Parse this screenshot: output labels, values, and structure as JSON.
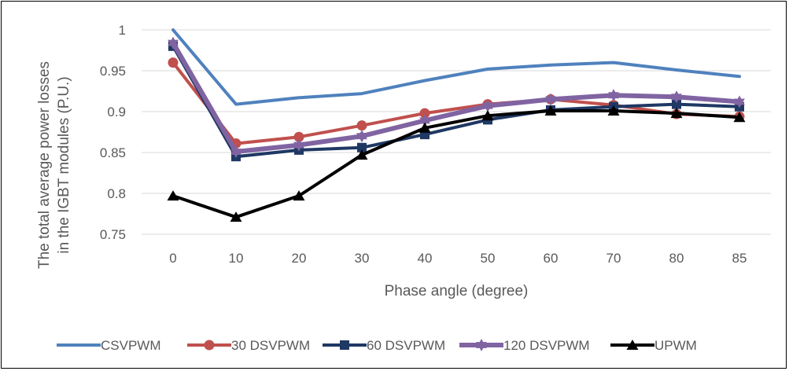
{
  "chart_data": {
    "type": "line",
    "title": "",
    "xlabel": "Phase angle (degree)",
    "ylabel_lines": [
      "The total average power losses",
      "in the IGBT modules (P.U.)"
    ],
    "categories": [
      "0",
      "10",
      "20",
      "30",
      "40",
      "50",
      "60",
      "70",
      "80",
      "85"
    ],
    "ylim": [
      0.75,
      1.0
    ],
    "yticks": [
      "0.75",
      "0.8",
      "0.85",
      "0.9",
      "0.95",
      "1"
    ],
    "grid": "horizontal",
    "legend_position": "bottom",
    "series": [
      {
        "name": "CSVPWM",
        "color": "#4f81bd",
        "marker": "none",
        "width": 4,
        "values": [
          1.0,
          0.909,
          0.917,
          0.922,
          0.938,
          0.952,
          0.957,
          0.96,
          0.951,
          0.943
        ]
      },
      {
        "name": "30 DSVPWM",
        "color": "#c0504d",
        "marker": "circle",
        "width": 4,
        "values": [
          0.96,
          0.861,
          0.869,
          0.883,
          0.898,
          0.909,
          0.915,
          0.908,
          0.897,
          0.894
        ]
      },
      {
        "name": "60 DSVPWM",
        "color": "#1f3864",
        "marker": "square",
        "width": 4,
        "values": [
          0.98,
          0.845,
          0.853,
          0.856,
          0.872,
          0.89,
          0.902,
          0.906,
          0.909,
          0.906
        ]
      },
      {
        "name": "120 DSVPWM",
        "color": "#8064a2",
        "marker": "star",
        "width": 6,
        "values": [
          0.984,
          0.851,
          0.859,
          0.87,
          0.889,
          0.907,
          0.915,
          0.92,
          0.918,
          0.912
        ]
      },
      {
        "name": "UPWM",
        "color": "#000000",
        "marker": "triangle",
        "width": 4,
        "values": [
          0.797,
          0.771,
          0.797,
          0.847,
          0.88,
          0.895,
          0.901,
          0.901,
          0.898,
          0.893
        ]
      }
    ]
  }
}
